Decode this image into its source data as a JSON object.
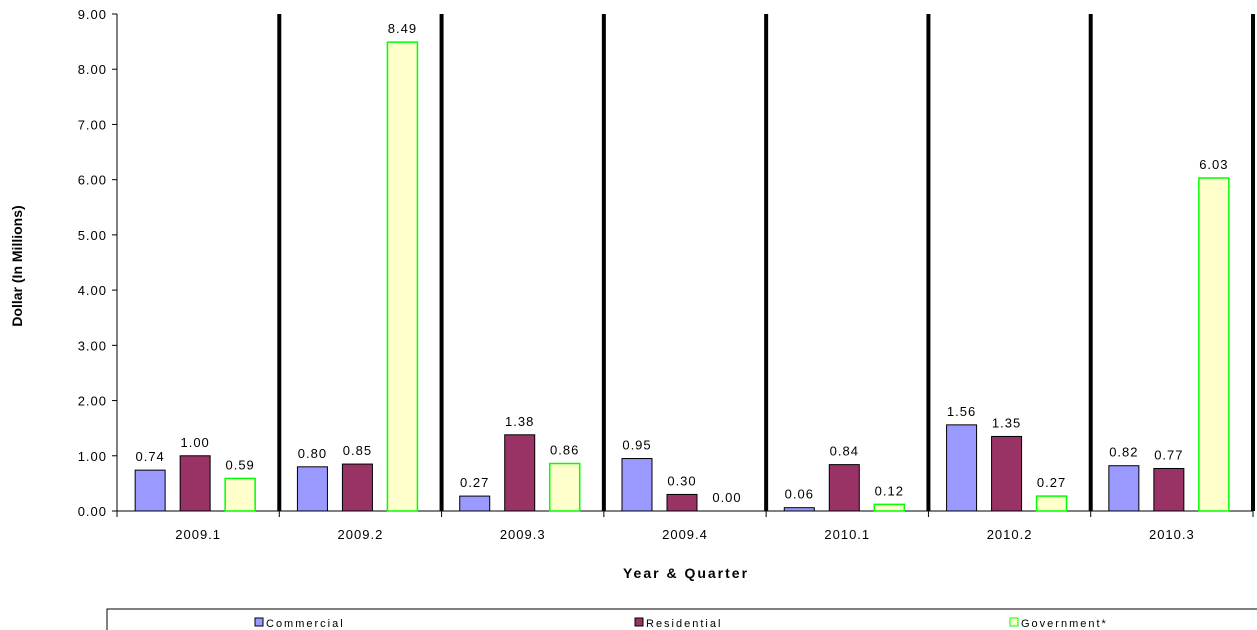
{
  "chart_data": {
    "type": "bar",
    "title": "",
    "xlabel": "Year & Quarter",
    "ylabel": "Dollar (In Millions)",
    "ylim": [
      0,
      9
    ],
    "yticks": [
      "0.00",
      "1.00",
      "2.00",
      "3.00",
      "4.00",
      "5.00",
      "6.00",
      "7.00",
      "8.00",
      "9.00"
    ],
    "grid": false,
    "legend_position": "bottom",
    "categories": [
      "2009.1",
      "2009.2",
      "2009.3",
      "2009.4",
      "2010.1",
      "2010.2",
      "2010.3"
    ],
    "series": [
      {
        "name": "Commercial",
        "color": "#9999ff",
        "stroke": "#000000",
        "values": [
          0.74,
          0.8,
          0.27,
          0.95,
          0.06,
          1.56,
          0.82
        ],
        "labels": [
          "0.74",
          "0.80",
          "0.27",
          "0.95",
          "0.06",
          "1.56",
          "0.82"
        ]
      },
      {
        "name": "Residential",
        "color": "#993366",
        "stroke": "#000000",
        "values": [
          1.0,
          0.85,
          1.38,
          0.3,
          0.84,
          1.35,
          0.77
        ],
        "labels": [
          "1.00",
          "0.85",
          "1.38",
          "0.30",
          "0.84",
          "1.35",
          "0.77"
        ]
      },
      {
        "name": "Government*",
        "color": "#ffffcc",
        "stroke": "#00ff00",
        "values": [
          0.59,
          8.49,
          0.86,
          0.0,
          0.12,
          0.27,
          6.03
        ],
        "labels": [
          "0.59",
          "8.49",
          "0.86",
          "0.00",
          "0.12",
          "0.27",
          "6.03"
        ]
      }
    ]
  }
}
